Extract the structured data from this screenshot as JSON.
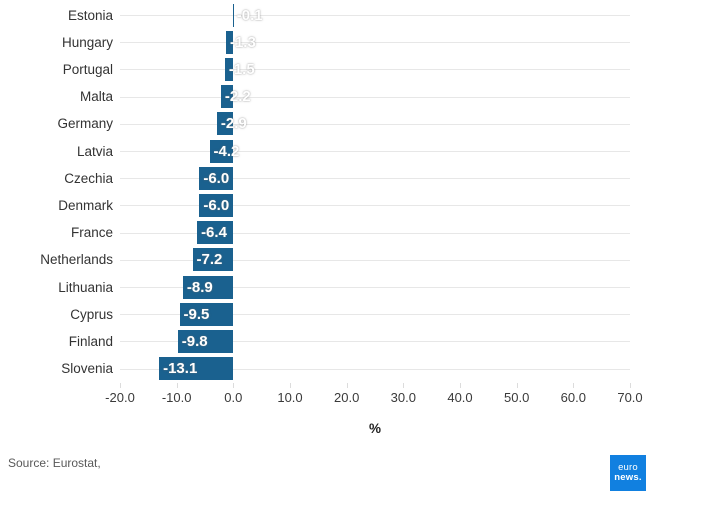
{
  "chart_data": {
    "type": "bar",
    "orientation": "horizontal",
    "title": "",
    "xlabel": "%",
    "ylabel": "",
    "xlim": [
      -20,
      70
    ],
    "grid": "horizontal category lines, light gray",
    "legend": "none",
    "bar_color": "#1a618f",
    "value_label_color": "#ffffff",
    "categories": [
      "Estonia",
      "Hungary",
      "Portugal",
      "Malta",
      "Germany",
      "Latvia",
      "Czechia",
      "Denmark",
      "France",
      "Netherlands",
      "Lithuania",
      "Cyprus",
      "Finland",
      "Slovenia"
    ],
    "values": [
      -0.1,
      -1.3,
      -1.5,
      -2.2,
      -2.9,
      -4.2,
      -6.0,
      -6.0,
      -6.4,
      -7.2,
      -8.9,
      -9.5,
      -9.8,
      -13.1
    ],
    "value_labels": [
      "-0.1",
      "-1.3",
      "-1.5",
      "-2.2",
      "-2.9",
      "-4.2",
      "-6.0",
      "-6.0",
      "-6.4",
      "-7.2",
      "-8.9",
      "-9.5",
      "-9.8",
      "-13.1"
    ],
    "x_tick_values": [
      -20,
      -10,
      0,
      10,
      20,
      30,
      40,
      50,
      60,
      70
    ],
    "x_tick_labels": [
      "-20.0",
      "-10.0",
      "0.0",
      "10.0",
      "20.0",
      "30.0",
      "40.0",
      "50.0",
      "60.0",
      "70.0"
    ]
  },
  "axis": {
    "title": "%"
  },
  "footer": {
    "source": "Source: Eurostat,",
    "logo": {
      "line1": "euro",
      "line2": "news.",
      "color": "#1180e0"
    }
  }
}
